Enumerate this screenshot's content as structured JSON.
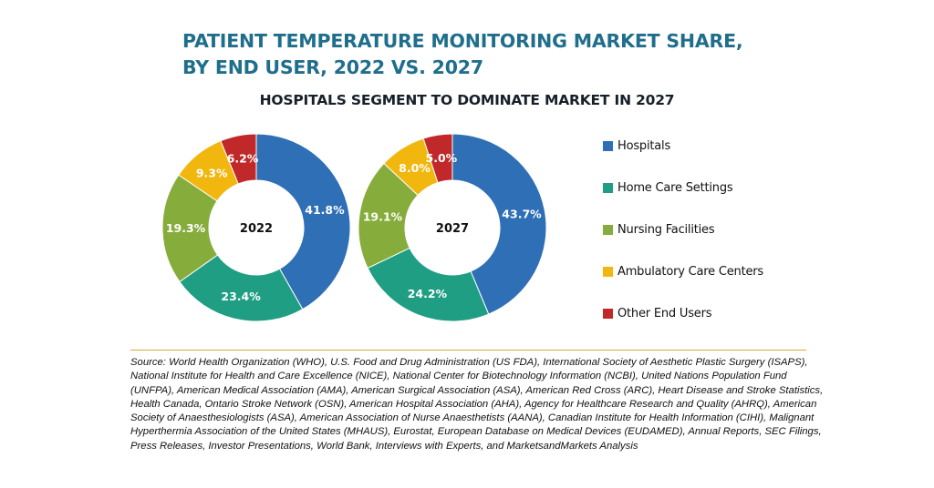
{
  "title_line1": "PATIENT TEMPERATURE MONITORING MARKET SHARE,",
  "title_line2": "BY END USER, 2022 VS. 2027",
  "subtitle": "HOSPITALS SEGMENT TO DOMINATE MARKET IN 2027",
  "colors": {
    "hospitals": "#2e6fb5",
    "home_care": "#1f9e83",
    "nursing": "#86ac3b",
    "ambulatory": "#f1b70f",
    "other": "#c0282a"
  },
  "chart_data": [
    {
      "type": "pie",
      "variant": "donut",
      "center_label": "2022",
      "categories": [
        "Hospitals",
        "Home Care Settings",
        "Nursing Facilities",
        "Ambulatory Care Centers",
        "Other End Users"
      ],
      "values": [
        41.8,
        23.4,
        19.3,
        9.3,
        6.2
      ],
      "labels": [
        "41.8%",
        "23.4%",
        "19.3%",
        "9.3%",
        "6.2%"
      ],
      "colors": [
        "#2e6fb5",
        "#1f9e83",
        "#86ac3b",
        "#f1b70f",
        "#c0282a"
      ],
      "legend": "right"
    },
    {
      "type": "pie",
      "variant": "donut",
      "center_label": "2027",
      "categories": [
        "Hospitals",
        "Home Care Settings",
        "Nursing Facilities",
        "Ambulatory Care Centers",
        "Other End Users"
      ],
      "values": [
        43.7,
        24.2,
        19.1,
        8.0,
        5.0
      ],
      "labels": [
        "43.7%",
        "24.2%",
        "19.1%",
        "8.0%",
        "5.0%"
      ],
      "colors": [
        "#2e6fb5",
        "#1f9e83",
        "#86ac3b",
        "#f1b70f",
        "#c0282a"
      ],
      "legend": "right"
    }
  ],
  "legend": [
    {
      "label": "Hospitals",
      "color": "#2e6fb5"
    },
    {
      "label": "Home Care Settings",
      "color": "#1f9e83"
    },
    {
      "label": "Nursing Facilities",
      "color": "#86ac3b"
    },
    {
      "label": "Ambulatory Care Centers",
      "color": "#f1b70f"
    },
    {
      "label": "Other End Users",
      "color": "#c0282a"
    }
  ],
  "source_text": "Source: World Health Organization (WHO), U.S. Food and Drug Administration (US FDA), International Society of Aesthetic Plastic Surgery (ISAPS), National Institute for Health and Care Excellence (NICE), National Center for Biotechnology Information (NCBI), United Nations Population Fund (UNFPA), American Medical Association (AMA), American Surgical Association (ASA), American Red Cross (ARC), Heart Disease and Stroke Statistics, Health Canada, Ontario Stroke Network (OSN), American Hospital Association (AHA), Agency for Healthcare Research and Quality (AHRQ), American Society of Anaesthesiologists (ASA), American Association of Nurse Anaesthetists (AANA), Canadian Institute for Health Information (CIHI), Malignant Hyperthermia Association of the United States (MHAUS), Eurostat, European Database on Medical Devices (EUDAMED), Annual Reports, SEC Filings, Press Releases, Investor Presentations, World Bank, Interviews with Experts, and MarketsandMarkets Analysis"
}
